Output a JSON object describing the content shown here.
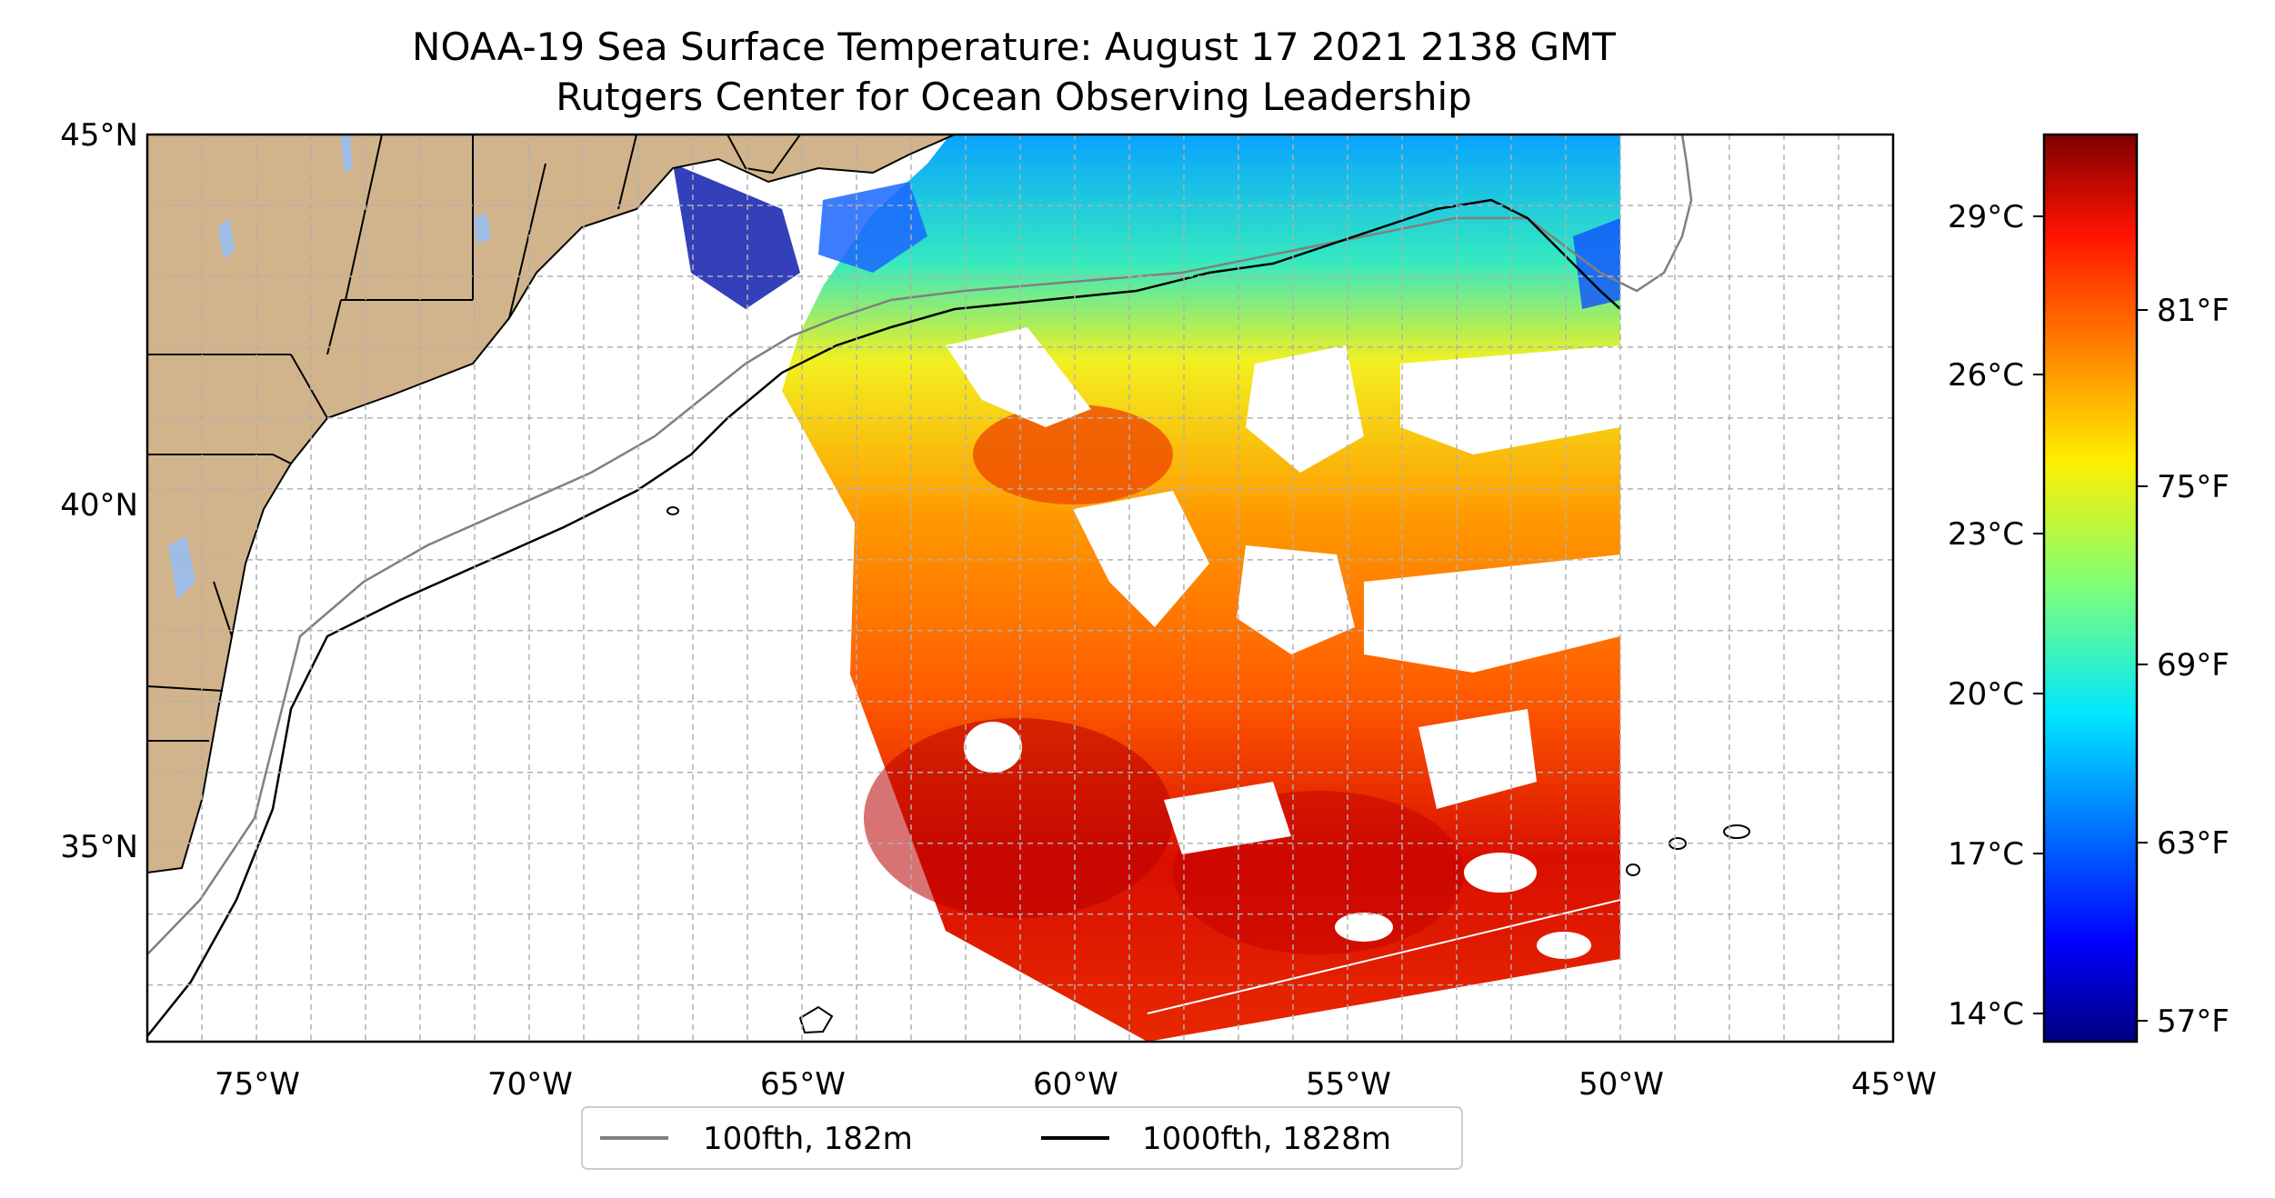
{
  "figure": {
    "title_line1": "NOAA-19 Sea Surface Temperature: August 17 2021 2138 GMT",
    "title_line2": "Rutgers Center for Ocean Observing Leadership"
  },
  "map": {
    "lat_labels": [
      "45°N",
      "40°N",
      "35°N"
    ],
    "lon_labels": [
      "75°W",
      "70°W",
      "65°W",
      "60°W",
      "55°W",
      "50°W",
      "45°W"
    ],
    "extent": {
      "lon": [
        -77,
        -45
      ],
      "lat": [
        32.2,
        45
      ]
    },
    "gridlines": true
  },
  "legend": {
    "items": [
      {
        "label": "100fth, 182m",
        "color": "#808080"
      },
      {
        "label": "1000fth, 1828m",
        "color": "#000000"
      }
    ]
  },
  "colorbar": {
    "colormap": "jet",
    "celsius_labels": [
      "29°C",
      "26°C",
      "23°C",
      "20°C",
      "17°C",
      "14°C"
    ],
    "fahrenheit_labels": [
      "81°F",
      "75°F",
      "69°F",
      "63°F",
      "57°F"
    ]
  },
  "colors": {
    "land": "#d2b48c",
    "lakes": "#9dbde6",
    "warm": "#d91a00",
    "cool": "#00a8ff"
  }
}
